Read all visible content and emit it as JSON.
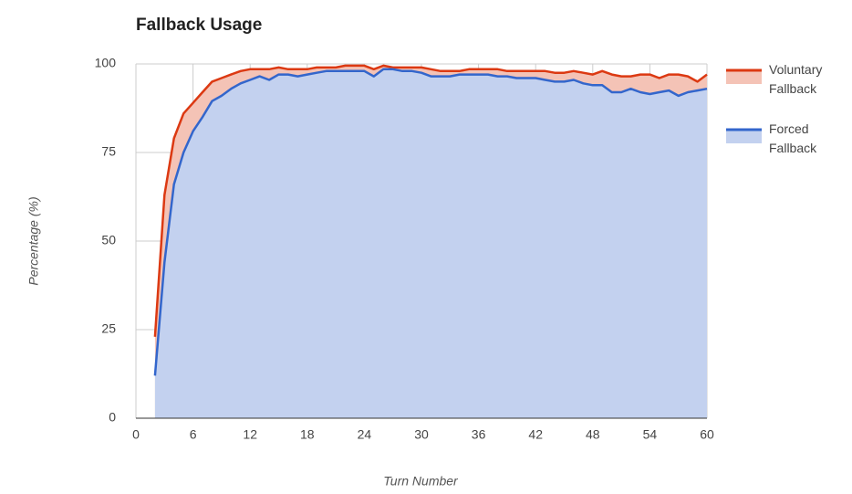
{
  "chart_data": {
    "type": "area",
    "title": "Fallback Usage",
    "x_label": "Turn Number",
    "y_label": "Percentage (%)",
    "x": [
      2,
      3,
      4,
      5,
      6,
      7,
      8,
      9,
      10,
      11,
      12,
      13,
      14,
      15,
      16,
      17,
      18,
      19,
      20,
      21,
      22,
      23,
      24,
      25,
      26,
      27,
      28,
      29,
      30,
      31,
      32,
      33,
      34,
      35,
      36,
      37,
      38,
      39,
      40,
      41,
      42,
      43,
      44,
      45,
      46,
      47,
      48,
      49,
      50,
      51,
      52,
      53,
      54,
      55,
      56,
      57,
      58,
      59,
      60
    ],
    "series": [
      {
        "name": "Voluntary Fallback",
        "color": "#dc3912",
        "fill": "#f4c3b6",
        "values": [
          23,
          63,
          79,
          86,
          89,
          92,
          95,
          96,
          97,
          98,
          98.5,
          98.5,
          98.5,
          99,
          98.5,
          98.5,
          98.5,
          99,
          99,
          99,
          99.5,
          99.5,
          99.5,
          98.5,
          99.5,
          99,
          99,
          99,
          99,
          98.5,
          98,
          98,
          98,
          98.5,
          98.5,
          98.5,
          98.5,
          98,
          98,
          98,
          98,
          98,
          97.5,
          97.5,
          98,
          97.5,
          97,
          98,
          97,
          96.5,
          96.5,
          97,
          97,
          96,
          97,
          97,
          96.5,
          95,
          97
        ]
      },
      {
        "name": "Forced Fallback",
        "color": "#3366cc",
        "fill": "#c3d1ef",
        "values": [
          12,
          44,
          66,
          75,
          81,
          85,
          89.5,
          91,
          93,
          94.5,
          95.5,
          96.5,
          95.5,
          97,
          97,
          96.5,
          97,
          97.5,
          98,
          98,
          98,
          98,
          98,
          96.5,
          98.5,
          98.5,
          98,
          98,
          97.5,
          96.5,
          96.5,
          96.5,
          97,
          97,
          97,
          97,
          96.5,
          96.5,
          96,
          96,
          96,
          95.5,
          95,
          95,
          95.5,
          94.5,
          94,
          94,
          92,
          92,
          93,
          92,
          91.5,
          92,
          92.5,
          91,
          92,
          92.5,
          93
        ]
      }
    ],
    "xlim": [
      0,
      60
    ],
    "xticks": [
      0,
      6,
      12,
      18,
      24,
      30,
      36,
      42,
      48,
      54,
      60
    ],
    "ylim": [
      0,
      100
    ],
    "yticks": [
      0,
      25,
      50,
      75,
      100
    ],
    "grid": true,
    "legend": "right"
  }
}
